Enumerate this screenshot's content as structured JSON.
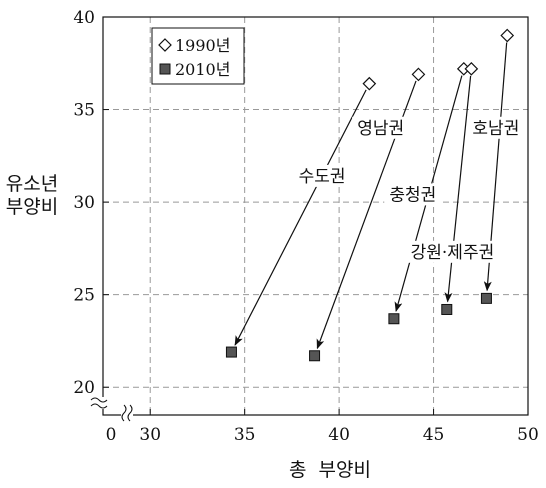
{
  "chart_data": {
    "type": "scatter",
    "xlabel": "총  부양비",
    "ylabel_lines": [
      "유소년",
      "부양비"
    ],
    "xlim": [
      27.5,
      50
    ],
    "ylim": [
      18.5,
      40
    ],
    "x_ticks": [
      30,
      35,
      40,
      45,
      50
    ],
    "y_ticks": [
      20,
      25,
      30,
      35,
      40
    ],
    "axis_origin_label": "0",
    "axis_break": true,
    "grid": true,
    "grid_style": "dashed",
    "legend_position": "top-left",
    "series": [
      {
        "name": "1990년",
        "marker": "diamond-open",
        "color": "#111111"
      },
      {
        "name": "2010년",
        "marker": "square-filled",
        "color": "#555555"
      }
    ],
    "regions": [
      {
        "name": "수도권",
        "x1990": 41.6,
        "y1990": 36.4,
        "x2010": 34.3,
        "y2010": 21.9,
        "label_x": 39.1,
        "label_y": 31.2
      },
      {
        "name": "영남권",
        "x1990": 44.2,
        "y1990": 36.9,
        "x2010": 38.7,
        "y2010": 21.7,
        "label_x": 42.2,
        "label_y": 33.8
      },
      {
        "name": "충청권",
        "x1990": 46.6,
        "y1990": 37.2,
        "x2010": 42.9,
        "y2010": 23.7,
        "label_x": 43.9,
        "label_y": 30.2
      },
      {
        "name": "강원·제주권",
        "x1990": 47.0,
        "y1990": 37.2,
        "x2010": 45.7,
        "y2010": 24.2,
        "label_x": 46.0,
        "label_y": 27.1
      },
      {
        "name": "호남권",
        "x1990": 48.9,
        "y1990": 39.0,
        "x2010": 47.8,
        "y2010": 24.8,
        "label_x": 48.3,
        "label_y": 33.8
      }
    ],
    "colors": {
      "grid": "#999999",
      "axis": "#111111",
      "marker_2010": "#555555"
    }
  }
}
